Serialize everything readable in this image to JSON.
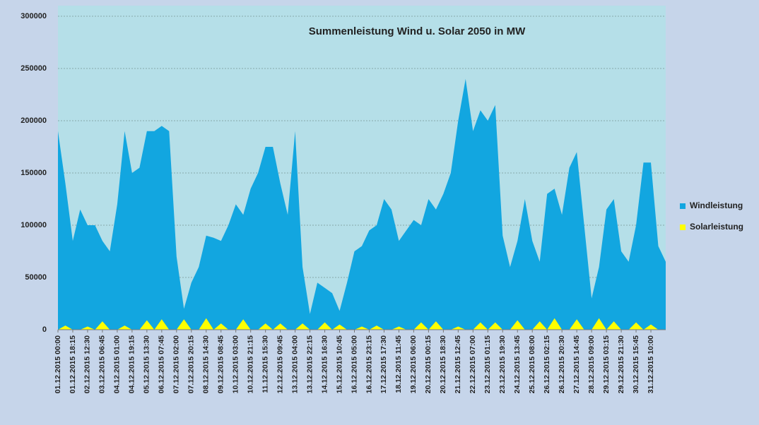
{
  "chart_data": {
    "type": "area",
    "title": "Summenleistung Wind u. Solar 2050 in MW",
    "categories": [
      "01.12.2015 00:00",
      null,
      "01.12.2015 18:15",
      null,
      "02.12.2015 12:30",
      null,
      "03.12.2015 06:45",
      null,
      "04.12.2015 01:00",
      null,
      "04.12.2015 19:15",
      null,
      "05.12.2015 13:30",
      null,
      "06.12.2015 07:45",
      null,
      "07.12.2015 02:00",
      null,
      "07.12.2015 20:15",
      null,
      "08.12.2015 14:30",
      null,
      "09.12.2015 08:45",
      null,
      "10.12.2015 03:00",
      null,
      "10.12.2015 21:15",
      null,
      "11.12.2015 15:30",
      null,
      "12.12.2015 09:45",
      null,
      "13.12.2015 04:00",
      null,
      "13.12.2015 22:15",
      null,
      "14.12.2015 16:30",
      null,
      "15.12.2015 10:45",
      null,
      "16.12.2015 05:00",
      null,
      "16.12.2015 23:15",
      null,
      "17.12.2015 17:30",
      null,
      "18.12.2015 11:45",
      null,
      "19.12.2015 06:00",
      null,
      "20.12.2015 00:15",
      null,
      "20.12.2015 18:30",
      null,
      "21.12.2015 12:45",
      null,
      "22.12.2015 07:00",
      null,
      "23.12.2015 01:15",
      null,
      "23.12.2015 19:30",
      null,
      "24.12.2015 13:45",
      null,
      "25.12.2015 08:00",
      null,
      "26.12.2015 02:15",
      null,
      "26.12.2015 20:30",
      null,
      "27.12.2015 14:45",
      null,
      "28.12.2015 09:00",
      null,
      "29.12.2015 03:15",
      null,
      "29.12.2015 21:30",
      null,
      "30.12.2015 15:45",
      null,
      "31.12.2015 10:00",
      null,
      null
    ],
    "series": [
      {
        "name": "Windleistung",
        "color": "#12a6e0",
        "values": [
          190000,
          140000,
          85000,
          115000,
          100000,
          100000,
          85000,
          75000,
          120000,
          190000,
          150000,
          155000,
          190000,
          190000,
          195000,
          190000,
          70000,
          20000,
          45000,
          60000,
          90000,
          88000,
          85000,
          100000,
          120000,
          110000,
          135000,
          150000,
          175000,
          175000,
          140000,
          110000,
          190000,
          60000,
          15000,
          45000,
          40000,
          35000,
          18000,
          45000,
          75000,
          80000,
          95000,
          100000,
          125000,
          115000,
          85000,
          95000,
          105000,
          100000,
          125000,
          115000,
          130000,
          150000,
          200000,
          240000,
          190000,
          210000,
          200000,
          215000,
          90000,
          60000,
          85000,
          125000,
          85000,
          65000,
          130000,
          135000,
          110000,
          155000,
          170000,
          100000,
          30000,
          60000,
          115000,
          125000,
          75000,
          65000,
          100000,
          160000,
          160000,
          80000,
          65000
        ]
      },
      {
        "name": "Solarleistung",
        "color": "#ffff00",
        "values": [
          0,
          4000,
          0,
          0,
          3000,
          0,
          8000,
          0,
          0,
          4000,
          0,
          0,
          9000,
          0,
          10000,
          0,
          0,
          10000,
          0,
          0,
          11000,
          0,
          6000,
          0,
          0,
          10000,
          0,
          0,
          6000,
          0,
          6000,
          0,
          0,
          6000,
          0,
          0,
          7000,
          0,
          5000,
          0,
          0,
          3000,
          0,
          4000,
          0,
          0,
          3000,
          0,
          0,
          7000,
          0,
          8000,
          0,
          0,
          3000,
          0,
          0,
          7000,
          0,
          7000,
          0,
          0,
          9000,
          0,
          0,
          8000,
          0,
          11000,
          0,
          0,
          10000,
          0,
          0,
          11000,
          0,
          8000,
          0,
          0,
          7000,
          0,
          5000,
          0,
          0
        ]
      }
    ],
    "ylim": [
      0,
      300000
    ],
    "yticks": [
      0,
      50000,
      100000,
      150000,
      200000,
      250000,
      300000
    ],
    "grid": true,
    "legend": "right"
  }
}
